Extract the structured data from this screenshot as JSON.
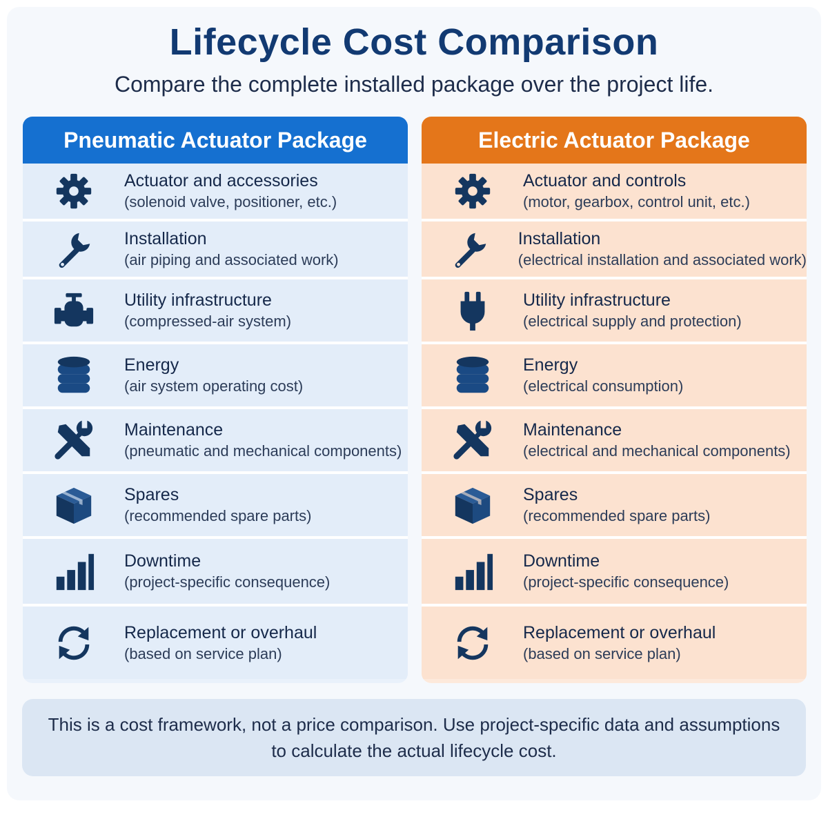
{
  "title": "Lifecycle Cost Comparison",
  "subtitle": "Compare the complete installed package over the project life.",
  "columns": [
    {
      "header": "Pneumatic Actuator Package",
      "accent": "#1570d0",
      "items": [
        {
          "icon": "gear-icon",
          "title": "Actuator and accessories",
          "desc": "(solenoid valve, positioner, etc.)"
        },
        {
          "icon": "wrench-icon",
          "title": "Installation",
          "desc": "(air piping and associated work)"
        },
        {
          "icon": "valve-icon",
          "title": "Utility infrastructure",
          "desc": "(compressed-air system)"
        },
        {
          "icon": "database-icon",
          "title": "Energy",
          "desc": "(air system operating cost)"
        },
        {
          "icon": "tools-icon",
          "title": "Maintenance",
          "desc": "(pneumatic and mechanical components)"
        },
        {
          "icon": "box-icon",
          "title": "Spares",
          "desc": "(recommended spare parts)"
        },
        {
          "icon": "bar-chart-icon",
          "title": "Downtime",
          "desc": "(project-specific consequence)"
        },
        {
          "icon": "refresh-icon",
          "title": "Replacement or overhaul",
          "desc": "(based on service plan)"
        }
      ]
    },
    {
      "header": "Electric Actuator Package",
      "accent": "#e4761a",
      "items": [
        {
          "icon": "gear-icon",
          "title": "Actuator and controls",
          "desc": "(motor, gearbox, control unit, etc.)"
        },
        {
          "icon": "wrench-icon",
          "title": "Installation",
          "desc": "(electrical installation and associated work)"
        },
        {
          "icon": "plug-icon",
          "title": "Utility infrastructure",
          "desc": "(electrical supply and protection)"
        },
        {
          "icon": "database-icon",
          "title": "Energy",
          "desc": "(electrical consumption)"
        },
        {
          "icon": "tools-icon",
          "title": "Maintenance",
          "desc": "(electrical and mechanical components)"
        },
        {
          "icon": "box-icon",
          "title": "Spares",
          "desc": "(recommended spare parts)"
        },
        {
          "icon": "bar-chart-icon",
          "title": "Downtime",
          "desc": "(project-specific consequence)"
        },
        {
          "icon": "refresh-icon",
          "title": "Replacement or overhaul",
          "desc": "(based on service plan)"
        }
      ]
    }
  ],
  "footer": {
    "line1": "This is a cost framework, not a price comparison. Use project-specific data and assumptions",
    "line2": "to calculate the actual lifecycle cost."
  }
}
